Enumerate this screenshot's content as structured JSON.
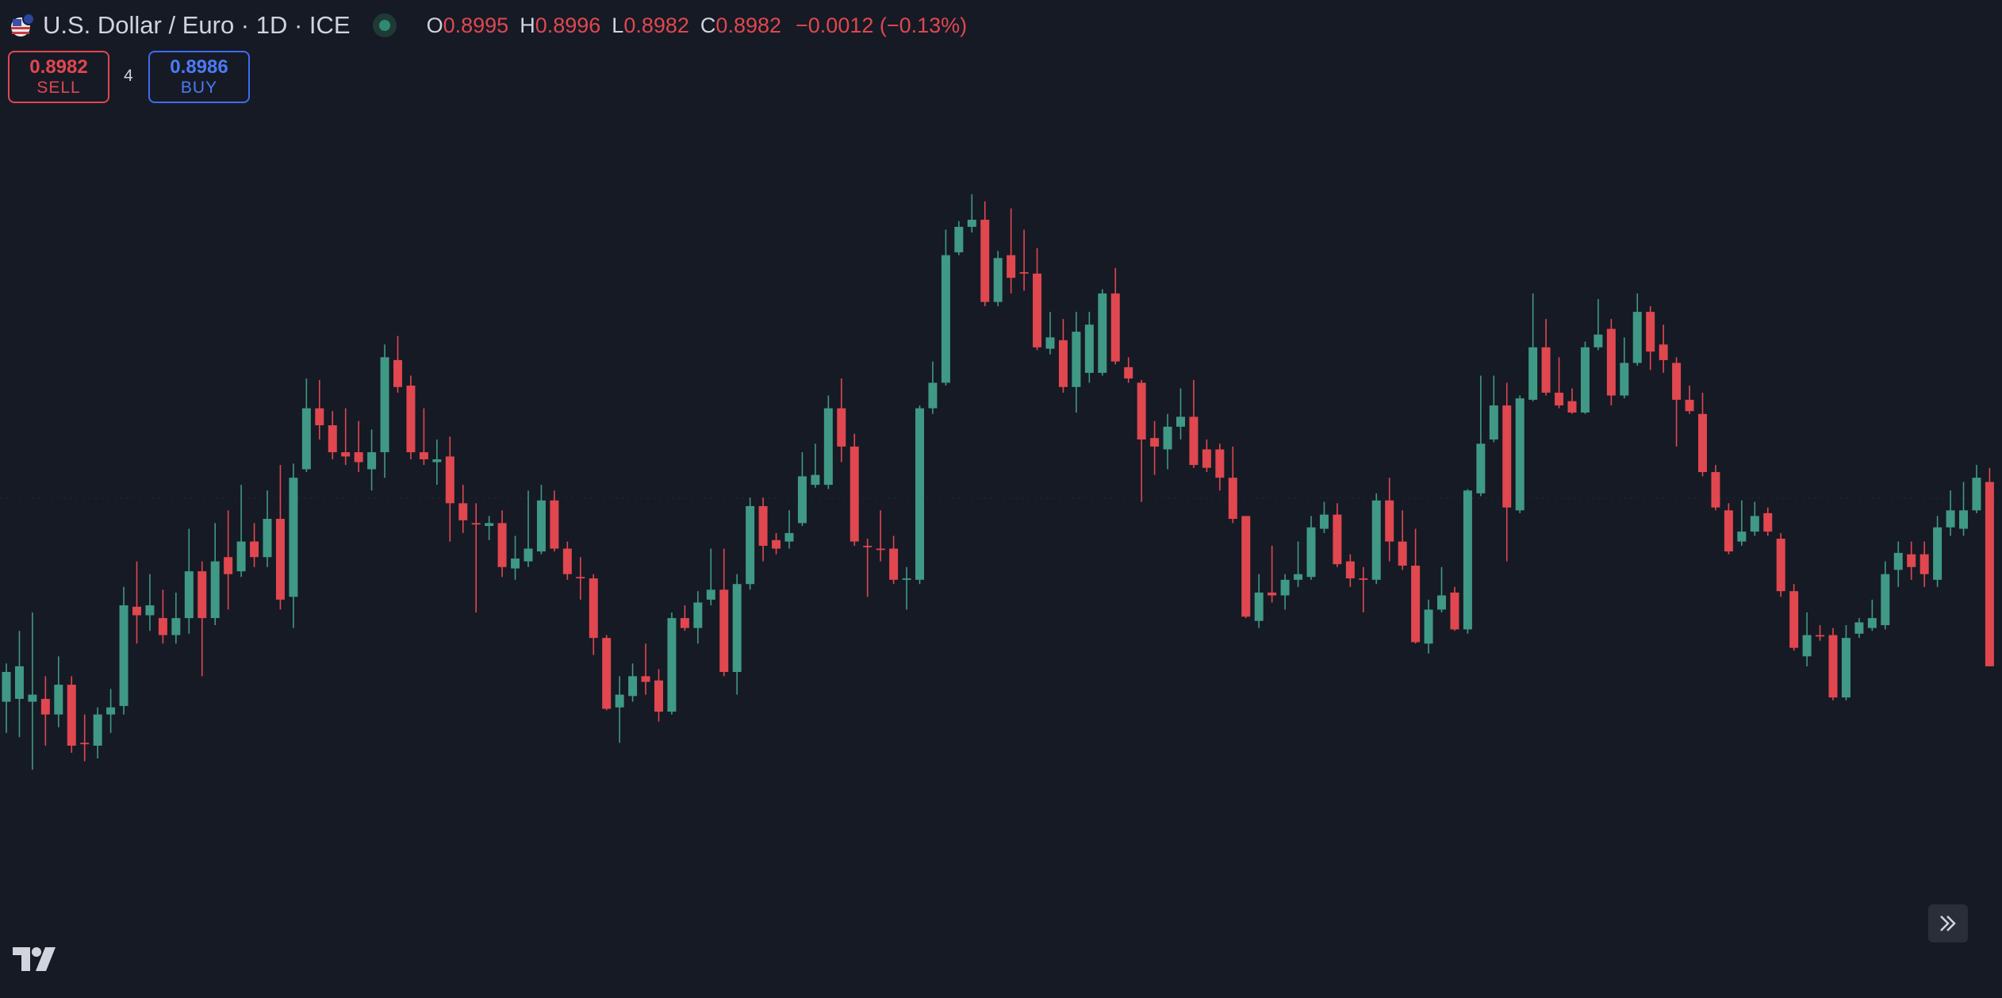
{
  "header": {
    "symbol": "U.S. Dollar / Euro · 1D · ICE",
    "ohlc": [
      {
        "label": "O",
        "value": "0.8995"
      },
      {
        "label": "H",
        "value": "0.8996"
      },
      {
        "label": "L",
        "value": "0.8982"
      },
      {
        "label": "C",
        "value": "0.8982"
      }
    ],
    "change": "−0.0012 (−0.13%)"
  },
  "trade": {
    "sell_price": "0.8982",
    "sell_label": "SELL",
    "spread": "4",
    "buy_price": "0.8986",
    "buy_label": "BUY"
  },
  "chart_data": {
    "type": "candlestick",
    "up_color": "#3f9985",
    "down_color": "#e0474f",
    "ylim": [
      0.89586,
      0.9029
    ],
    "ohlc": [
      [
        0.89795,
        0.89822,
        0.89773,
        0.89816
      ],
      [
        0.89797,
        0.89845,
        0.8977,
        0.8982
      ],
      [
        0.89795,
        0.89858,
        0.89747,
        0.898
      ],
      [
        0.89797,
        0.89813,
        0.89764,
        0.89786
      ],
      [
        0.89786,
        0.89827,
        0.89777,
        0.89807
      ],
      [
        0.89807,
        0.89813,
        0.89759,
        0.89764
      ],
      [
        0.89766,
        0.89786,
        0.89753,
        0.89765
      ],
      [
        0.89764,
        0.89791,
        0.89755,
        0.89786
      ],
      [
        0.89786,
        0.89804,
        0.89773,
        0.89791
      ],
      [
        0.89792,
        0.89876,
        0.89786,
        0.89863
      ],
      [
        0.89862,
        0.89894,
        0.89836,
        0.89856
      ],
      [
        0.89856,
        0.89885,
        0.89845,
        0.89863
      ],
      [
        0.89854,
        0.89874,
        0.89836,
        0.89842
      ],
      [
        0.89842,
        0.89872,
        0.89836,
        0.89854
      ],
      [
        0.89854,
        0.89917,
        0.89843,
        0.89887
      ],
      [
        0.89887,
        0.89894,
        0.89813,
        0.89854
      ],
      [
        0.89854,
        0.89921,
        0.89849,
        0.89894
      ],
      [
        0.89897,
        0.8993,
        0.8986,
        0.89885
      ],
      [
        0.89887,
        0.89948,
        0.89883,
        0.89908
      ],
      [
        0.89908,
        0.89921,
        0.8989,
        0.89897
      ],
      [
        0.89897,
        0.89944,
        0.8989,
        0.89924
      ],
      [
        0.89924,
        0.89962,
        0.8986,
        0.89867
      ],
      [
        0.89869,
        0.89963,
        0.89847,
        0.89953
      ],
      [
        0.89959,
        0.90023,
        0.89957,
        0.90002
      ],
      [
        0.90002,
        0.90022,
        0.8998,
        0.8999
      ],
      [
        0.8999,
        0.9,
        0.89966,
        0.89971
      ],
      [
        0.89971,
        0.90002,
        0.89962,
        0.89968
      ],
      [
        0.89971,
        0.89993,
        0.89957,
        0.89964
      ],
      [
        0.89959,
        0.89987,
        0.89944,
        0.89971
      ],
      [
        0.89971,
        0.90047,
        0.89953,
        0.90038
      ],
      [
        0.90036,
        0.90053,
        0.90013,
        0.90017
      ],
      [
        0.90018,
        0.90025,
        0.89966,
        0.89971
      ],
      [
        0.89971,
        0.90002,
        0.89962,
        0.89966
      ],
      [
        0.89964,
        0.8998,
        0.89948,
        0.89966
      ],
      [
        0.89968,
        0.89982,
        0.89908,
        0.89935
      ],
      [
        0.89935,
        0.89948,
        0.89914,
        0.89923
      ],
      [
        0.89921,
        0.89935,
        0.89858,
        0.8992
      ],
      [
        0.89919,
        0.89926,
        0.89909,
        0.89921
      ],
      [
        0.89921,
        0.8993,
        0.89883,
        0.8989
      ],
      [
        0.89889,
        0.89912,
        0.89881,
        0.89896
      ],
      [
        0.89894,
        0.89944,
        0.8989,
        0.89903
      ],
      [
        0.89901,
        0.89948,
        0.89899,
        0.89937
      ],
      [
        0.89937,
        0.89944,
        0.89901,
        0.89903
      ],
      [
        0.89903,
        0.89908,
        0.89881,
        0.89885
      ],
      [
        0.89883,
        0.89897,
        0.89867,
        0.89882
      ],
      [
        0.89882,
        0.89885,
        0.89828,
        0.8984
      ],
      [
        0.8984,
        0.89842,
        0.89789,
        0.8979
      ],
      [
        0.89791,
        0.89813,
        0.89766,
        0.898
      ],
      [
        0.89799,
        0.89822,
        0.89795,
        0.89813
      ],
      [
        0.89813,
        0.89836,
        0.898,
        0.89809
      ],
      [
        0.8981,
        0.89818,
        0.89781,
        0.89788
      ],
      [
        0.89788,
        0.89858,
        0.89786,
        0.89854
      ],
      [
        0.89854,
        0.89863,
        0.89845,
        0.89847
      ],
      [
        0.89847,
        0.89873,
        0.89836,
        0.89865
      ],
      [
        0.89867,
        0.89903,
        0.89863,
        0.89874
      ],
      [
        0.89874,
        0.89903,
        0.89813,
        0.89816
      ],
      [
        0.89816,
        0.89885,
        0.898,
        0.89878
      ],
      [
        0.89878,
        0.89939,
        0.89874,
        0.89933
      ],
      [
        0.89933,
        0.89939,
        0.89894,
        0.89905
      ],
      [
        0.89909,
        0.89914,
        0.89899,
        0.89903
      ],
      [
        0.89908,
        0.8993,
        0.89903,
        0.89914
      ],
      [
        0.89921,
        0.89971,
        0.89919,
        0.89954
      ],
      [
        0.89948,
        0.89977,
        0.89946,
        0.89955
      ],
      [
        0.89948,
        0.90011,
        0.89945,
        0.90002
      ],
      [
        0.90002,
        0.90023,
        0.89964,
        0.89975
      ],
      [
        0.89975,
        0.89984,
        0.89905,
        0.89908
      ],
      [
        0.89905,
        0.8991,
        0.89869,
        0.89904
      ],
      [
        0.89903,
        0.8993,
        0.89894,
        0.89902
      ],
      [
        0.89903,
        0.89912,
        0.89878,
        0.89881
      ],
      [
        0.89881,
        0.8989,
        0.8986,
        0.89882
      ],
      [
        0.89881,
        0.90004,
        0.89878,
        0.90002
      ],
      [
        0.90002,
        0.90035,
        0.89998,
        0.9002
      ],
      [
        0.9002,
        0.90128,
        0.90018,
        0.9011
      ],
      [
        0.90112,
        0.90134,
        0.9011,
        0.9013
      ],
      [
        0.9013,
        0.90153,
        0.90126,
        0.90135
      ],
      [
        0.90135,
        0.90148,
        0.90074,
        0.90077
      ],
      [
        0.90077,
        0.90113,
        0.90074,
        0.90108
      ],
      [
        0.9011,
        0.90143,
        0.90083,
        0.90094
      ],
      [
        0.90098,
        0.90128,
        0.90085,
        0.90097
      ],
      [
        0.90097,
        0.90115,
        0.90043,
        0.90045
      ],
      [
        0.90044,
        0.9007,
        0.9004,
        0.90052
      ],
      [
        0.9005,
        0.90065,
        0.90013,
        0.90017
      ],
      [
        0.90017,
        0.9007,
        0.89999,
        0.90056
      ],
      [
        0.90027,
        0.9007,
        0.9002,
        0.90061
      ],
      [
        0.90027,
        0.90086,
        0.90025,
        0.90083
      ],
      [
        0.90083,
        0.90101,
        0.90033,
        0.90035
      ],
      [
        0.90031,
        0.90038,
        0.9002,
        0.90023
      ],
      [
        0.9002,
        0.90022,
        0.89936,
        0.8998
      ],
      [
        0.89981,
        0.89993,
        0.89955,
        0.89975
      ],
      [
        0.89973,
        0.89998,
        0.89959,
        0.89989
      ],
      [
        0.89989,
        0.90016,
        0.8998,
        0.89996
      ],
      [
        0.89996,
        0.90022,
        0.8996,
        0.89962
      ],
      [
        0.89973,
        0.8998,
        0.89957,
        0.8996
      ],
      [
        0.89973,
        0.89977,
        0.89944,
        0.89953
      ],
      [
        0.89953,
        0.89975,
        0.89921,
        0.89924
      ],
      [
        0.89926,
        0.89926,
        0.89854,
        0.89855
      ],
      [
        0.89852,
        0.89885,
        0.89847,
        0.89872
      ],
      [
        0.89872,
        0.89905,
        0.89865,
        0.8987
      ],
      [
        0.8987,
        0.89885,
        0.8986,
        0.89881
      ],
      [
        0.89881,
        0.89908,
        0.89876,
        0.89885
      ],
      [
        0.89883,
        0.89926,
        0.89881,
        0.89918
      ],
      [
        0.89917,
        0.89936,
        0.89914,
        0.89927
      ],
      [
        0.89927,
        0.89935,
        0.8989,
        0.89892
      ],
      [
        0.89894,
        0.89899,
        0.89876,
        0.89882
      ],
      [
        0.89882,
        0.8989,
        0.89858,
        0.89881
      ],
      [
        0.89881,
        0.89942,
        0.89878,
        0.89937
      ],
      [
        0.89937,
        0.89953,
        0.89894,
        0.89908
      ],
      [
        0.89908,
        0.8993,
        0.89888,
        0.89891
      ],
      [
        0.89891,
        0.89917,
        0.89836,
        0.89837
      ],
      [
        0.89836,
        0.89867,
        0.89829,
        0.8986
      ],
      [
        0.8986,
        0.8989,
        0.89858,
        0.8987
      ],
      [
        0.89872,
        0.89876,
        0.89845,
        0.89846
      ],
      [
        0.89846,
        0.89945,
        0.89843,
        0.89944
      ],
      [
        0.89942,
        0.90025,
        0.8994,
        0.89977
      ],
      [
        0.8998,
        0.90025,
        0.89978,
        0.90004
      ],
      [
        0.90004,
        0.9002,
        0.89894,
        0.89932
      ],
      [
        0.8993,
        0.90011,
        0.89928,
        0.90009
      ],
      [
        0.90008,
        0.90083,
        0.90007,
        0.90045
      ],
      [
        0.90045,
        0.90065,
        0.90011,
        0.90013
      ],
      [
        0.90013,
        0.90038,
        0.90002,
        0.90004
      ],
      [
        0.90007,
        0.90016,
        0.89998,
        0.89999
      ],
      [
        0.89999,
        0.90049,
        0.89998,
        0.90045
      ],
      [
        0.90045,
        0.90079,
        0.90043,
        0.90054
      ],
      [
        0.90058,
        0.90065,
        0.90004,
        0.90011
      ],
      [
        0.90011,
        0.90052,
        0.90009,
        0.90034
      ],
      [
        0.90034,
        0.90083,
        0.90032,
        0.9007
      ],
      [
        0.9007,
        0.90074,
        0.90029,
        0.90042
      ],
      [
        0.90047,
        0.90061,
        0.90027,
        0.90036
      ],
      [
        0.90034,
        0.90038,
        0.89975,
        0.90008
      ],
      [
        0.90008,
        0.90018,
        0.89998,
        0.9
      ],
      [
        0.89998,
        0.90013,
        0.89954,
        0.89957
      ],
      [
        0.89957,
        0.89962,
        0.8993,
        0.89932
      ],
      [
        0.8993,
        0.89935,
        0.89899,
        0.89901
      ],
      [
        0.89908,
        0.89937,
        0.89905,
        0.89915
      ],
      [
        0.89915,
        0.89936,
        0.89912,
        0.89926
      ],
      [
        0.89928,
        0.89932,
        0.89912,
        0.89915
      ],
      [
        0.8991,
        0.89914,
        0.89869,
        0.89873
      ],
      [
        0.89873,
        0.89878,
        0.89831,
        0.89833
      ],
      [
        0.89827,
        0.89858,
        0.8982,
        0.89842
      ],
      [
        0.89842,
        0.89849,
        0.89838,
        0.89841
      ],
      [
        0.89842,
        0.89847,
        0.89796,
        0.89798
      ],
      [
        0.89798,
        0.89849,
        0.89796,
        0.8984
      ],
      [
        0.89843,
        0.89854,
        0.8984,
        0.89851
      ],
      [
        0.89847,
        0.89867,
        0.89845,
        0.89854
      ],
      [
        0.89849,
        0.89894,
        0.89846,
        0.89885
      ],
      [
        0.89888,
        0.89908,
        0.89876,
        0.899
      ],
      [
        0.89899,
        0.89908,
        0.89881,
        0.8989
      ],
      [
        0.89899,
        0.89908,
        0.89876,
        0.89885
      ],
      [
        0.89881,
        0.89926,
        0.89876,
        0.89918
      ],
      [
        0.89918,
        0.89944,
        0.89912,
        0.8993
      ],
      [
        0.89917,
        0.8995,
        0.89912,
        0.8993
      ],
      [
        0.8993,
        0.89962,
        0.89928,
        0.89953
      ],
      [
        0.8995,
        0.8996,
        0.8982,
        0.8982
      ]
    ]
  }
}
